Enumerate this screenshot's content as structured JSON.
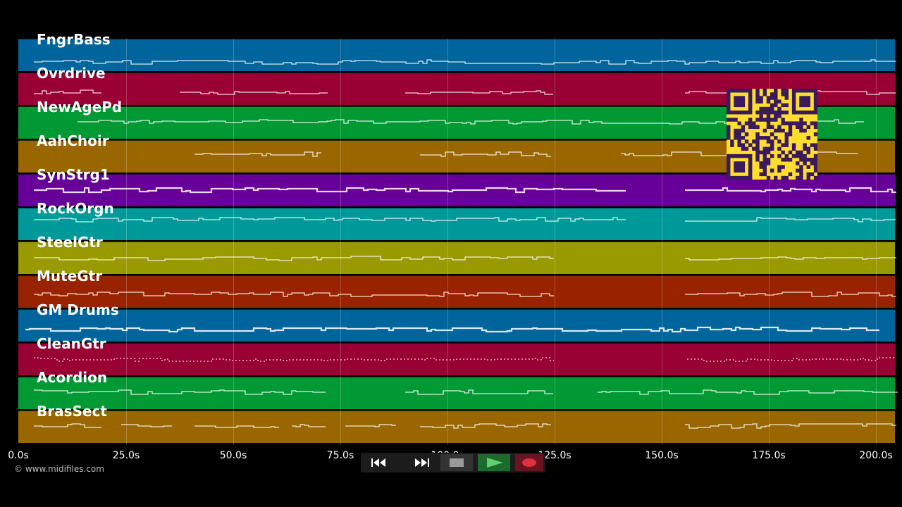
{
  "tracks": [
    {
      "name": "FngrBass",
      "color": "#00659c"
    },
    {
      "name": "Ovrdrive",
      "color": "#990033"
    },
    {
      "name": "NewAgePd",
      "color": "#009933"
    },
    {
      "name": "AahChoir",
      "color": "#996600"
    },
    {
      "name": "SynStrg1",
      "color": "#660099"
    },
    {
      "name": "RockOrgn",
      "color": "#009999"
    },
    {
      "name": "SteelGtr",
      "color": "#999900"
    },
    {
      "name": "MuteGtr",
      "color": "#992200"
    },
    {
      "name": "GM Drums",
      "color": "#00659c"
    },
    {
      "name": "CleanGtr",
      "color": "#990033"
    },
    {
      "name": "Acordion",
      "color": "#009933"
    },
    {
      "name": "BrasSect",
      "color": "#996600"
    }
  ],
  "timeline": {
    "ticks": [
      {
        "label": "0.0s"
      },
      {
        "label": "25.0s"
      },
      {
        "label": "50.0s"
      },
      {
        "label": "75.0s"
      },
      {
        "label": "100.0s"
      },
      {
        "label": "125.0s"
      },
      {
        "label": "150.0s"
      },
      {
        "label": "175.0s"
      },
      {
        "label": "200.0s"
      }
    ]
  },
  "copyright": "© www.midifiles.com",
  "transport": {
    "rewind_icon": "rewind-icon",
    "fast_forward_icon": "fast-forward-icon",
    "stop_icon": "stop-icon",
    "play_icon": "play-icon",
    "record_icon": "record-icon"
  },
  "qr": {
    "icon": "qr-code-icon",
    "color": "#ffde2e",
    "ink": "#3a1a5c"
  }
}
